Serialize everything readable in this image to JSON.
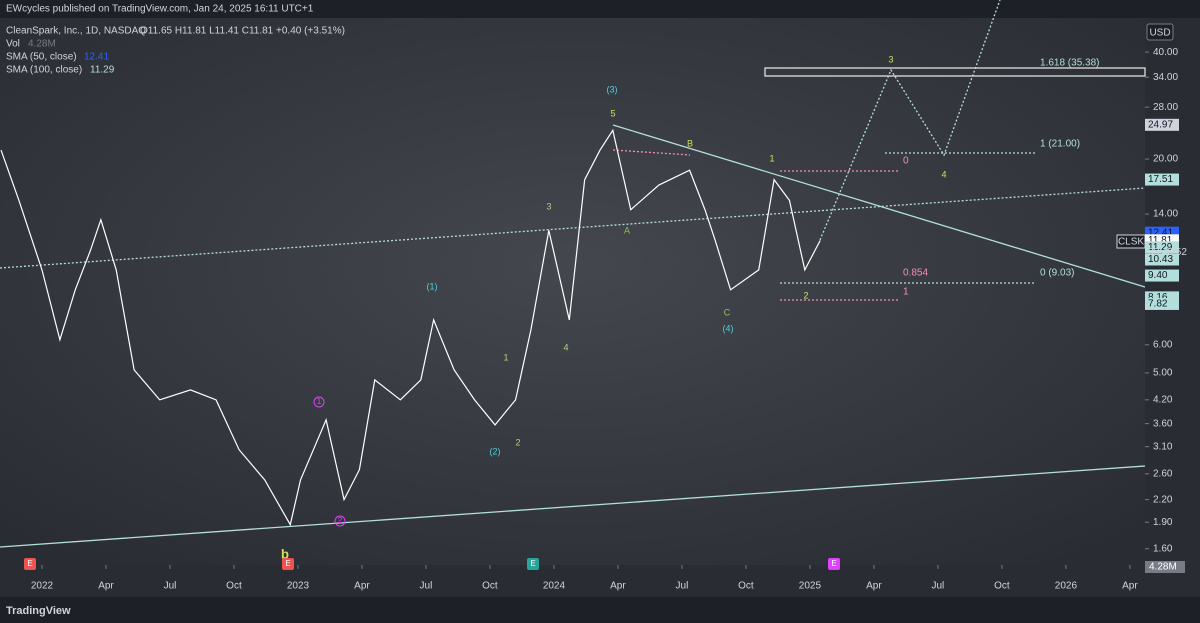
{
  "header": {
    "publisher": "EWcycles published on TradingView.com, Jan 24, 2025 16:11 UTC+1"
  },
  "legend": {
    "symbol": "CleanSpark, Inc., 1D, NASDAQ",
    "ohlc": "O11.65 H11.81 L11.41 C11.81 +0.40 (+3.51%)",
    "vol": "Vol",
    "vol_value": "4.28M",
    "sma50": "SMA (50, close)",
    "sma50_value": "12.41",
    "sma100": "SMA (100, close)",
    "sma100_value": "11.29"
  },
  "currency": "USD",
  "symbol_tag": "CLSK",
  "countdown": "05:48:52",
  "brand": "TradingView",
  "earnings_marker": "E",
  "volume_tag": "4.28M",
  "waves": [
    "(3)",
    "5",
    "B",
    "A",
    "C",
    "(4)",
    "(1)",
    "(2)",
    "1",
    "2",
    "3",
    "4",
    "1",
    "2",
    "3",
    "4",
    "b",
    "1",
    "2"
  ],
  "fib": [
    "1.618 (35.38)",
    "1 (21.00)",
    "0 (9.03)",
    "0",
    "0.854",
    "1"
  ],
  "price_tags": [
    {
      "value": 24.97,
      "label": "24.97",
      "color": "#d1d4dc"
    },
    {
      "value": 17.51,
      "label": "17.51",
      "color": "#b2dfdb"
    },
    {
      "value": 12.41,
      "label": "12.41",
      "color": "#2962ff"
    },
    {
      "value": 11.81,
      "label": "11.81",
      "color": "#ffffff"
    },
    {
      "value": 11.29,
      "label": "11.29",
      "color": "#b2dfdb"
    },
    {
      "value": 10.43,
      "label": "10.43",
      "color": "#b2dfdb"
    },
    {
      "value": 9.4,
      "label": "9.40",
      "color": "#b2dfdb"
    },
    {
      "value": 8.16,
      "label": "8.16",
      "color": "#b2dfdb"
    },
    {
      "value": 7.82,
      "label": "7.82",
      "color": "#b2dfdb"
    }
  ],
  "chart_data": {
    "type": "line",
    "color": "#ffffff",
    "log_scale": true,
    "x": [
      2021.84,
      2021.91,
      2022.0,
      2022.07,
      2022.13,
      2022.19,
      2022.23,
      2022.29,
      2022.36,
      2022.46,
      2022.58,
      2022.68,
      2022.77,
      2022.87,
      2022.97,
      2023.01,
      2023.11,
      2023.18,
      2023.24,
      2023.3,
      2023.4,
      2023.48,
      2023.53,
      2023.61,
      2023.69,
      2023.77,
      2023.85,
      2023.91,
      2023.98,
      2024.06,
      2024.12,
      2024.18,
      2024.23,
      2024.3,
      2024.41,
      2024.53,
      2024.59,
      2024.63,
      2024.69,
      2024.8,
      2024.86,
      2024.92,
      2024.98,
      2025.04
    ],
    "values": [
      21.2,
      15.3,
      9.75,
      6.2,
      8.57,
      11.1,
      13.5,
      9.75,
      5.1,
      4.2,
      4.48,
      4.2,
      3.04,
      2.5,
      1.87,
      2.5,
      3.69,
      2.2,
      2.67,
      4.78,
      4.2,
      4.78,
      7.05,
      5.1,
      4.2,
      3.57,
      4.2,
      6.61,
      12.6,
      7.05,
      17.5,
      21.2,
      24.1,
      14.4,
      16.9,
      18.6,
      14.4,
      11.8,
      8.57,
      9.75,
      17.5,
      15.3,
      9.75,
      11.8
    ],
    "xlim": [
      2021.836,
      2026.309
    ],
    "ylim": [
      1.44,
      49.9
    ],
    "xticks": [
      {
        "value": 2022,
        "label": "2022"
      },
      {
        "value": 2022.25,
        "label": "Apr"
      },
      {
        "value": 2022.5,
        "label": "Jul"
      },
      {
        "value": 2022.75,
        "label": "Oct"
      },
      {
        "value": 2023,
        "label": "2023"
      },
      {
        "value": 2023.25,
        "label": "Apr"
      },
      {
        "value": 2023.5,
        "label": "Jul"
      },
      {
        "value": 2023.75,
        "label": "Oct"
      },
      {
        "value": 2024,
        "label": "2024"
      },
      {
        "value": 2024.25,
        "label": "Apr"
      },
      {
        "value": 2024.5,
        "label": "Jul"
      },
      {
        "value": 2024.75,
        "label": "Oct"
      },
      {
        "value": 2025,
        "label": "2025"
      },
      {
        "value": 2025.25,
        "label": "Apr"
      },
      {
        "value": 2025.5,
        "label": "Jul"
      },
      {
        "value": 2025.75,
        "label": "Oct"
      },
      {
        "value": 2026,
        "label": "2026"
      },
      {
        "value": 2026.25,
        "label": "Apr"
      }
    ],
    "yticks": [
      {
        "value": 40,
        "label": "40.00"
      },
      {
        "value": 34,
        "label": "34.00"
      },
      {
        "value": 28,
        "label": "28.00"
      },
      {
        "value": 20,
        "label": "20.00"
      },
      {
        "value": 14,
        "label": "14.00"
      },
      {
        "value": 6,
        "label": "6.00"
      },
      {
        "value": 5,
        "label": "5.00"
      },
      {
        "value": 4.2,
        "label": "4.20"
      },
      {
        "value": 3.6,
        "label": "3.60"
      },
      {
        "value": 3.1,
        "label": "3.10"
      },
      {
        "value": 2.6,
        "label": "2.60"
      },
      {
        "value": 2.2,
        "label": "2.20"
      },
      {
        "value": 1.9,
        "label": "1.90"
      },
      {
        "value": 1.6,
        "label": "1.60"
      }
    ]
  }
}
